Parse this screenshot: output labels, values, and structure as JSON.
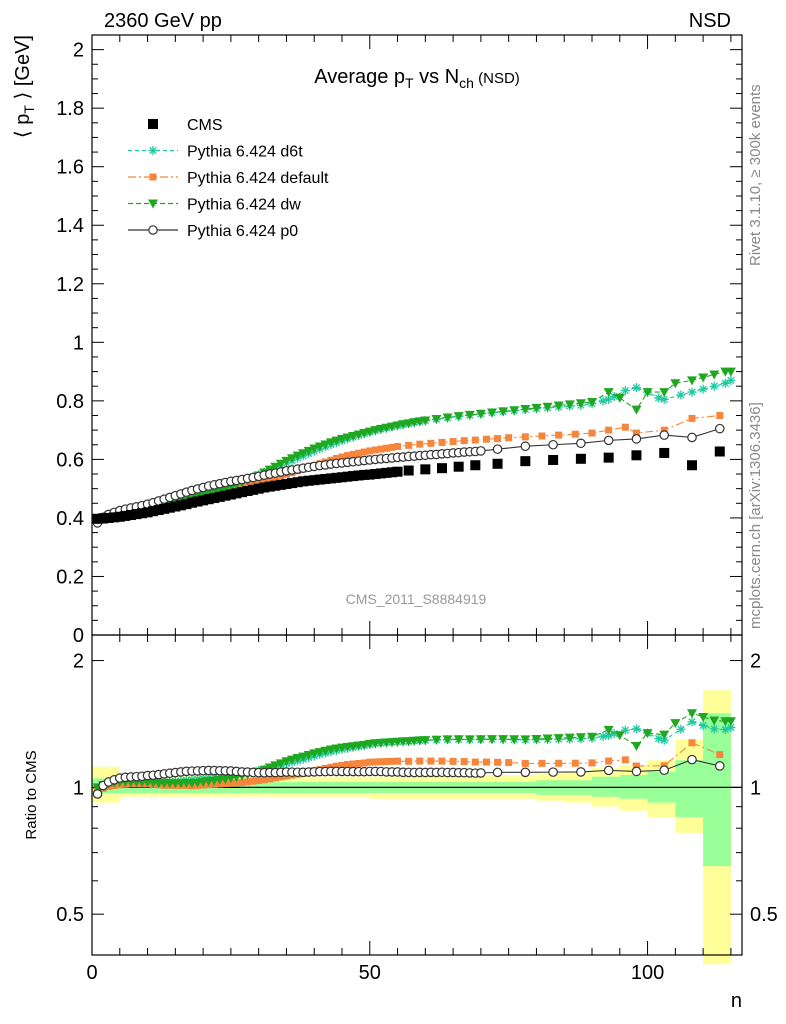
{
  "header": {
    "left": "2360 GeV pp",
    "right": "NSD"
  },
  "side_labels": {
    "rivet": "Rivet 3.1.10, ≥ 300k events",
    "mcplots": "mcplots.cern.ch [arXiv:1306.3436]"
  },
  "analysis_id": "CMS_2011_S8884919",
  "plot_title": {
    "main": "Average p",
    "sub1": "T",
    "mid": " vs N",
    "sub2": "ch",
    "tail": " (NSD)"
  },
  "colors": {
    "cms": "#000000",
    "d6t": "#1fc9a0",
    "default": "#f5863c",
    "dw": "#1fa81f",
    "p0": "#333333",
    "band_inner": "#99ff99",
    "band_outer": "#ffff99"
  },
  "chart_data": {
    "type": "line",
    "xlabel": "n",
    "ylabel": "⟨ p",
    "ylabel_sub": "T",
    "ylabel_tail": " ⟩ [GeV]",
    "xlim": [
      0,
      117
    ],
    "ylim": [
      0,
      2.05
    ],
    "x_ticks": [
      "0",
      "50",
      "100"
    ],
    "y_ticks": [
      "0",
      "0.2",
      "0.4",
      "0.6",
      "0.8",
      "1",
      "1.2",
      "1.4",
      "1.6",
      "1.8",
      "2"
    ],
    "legend_position": "top-left",
    "legend": [
      "CMS",
      "Pythia 6.424 d6t",
      "Pythia 6.424 default",
      "Pythia 6.424 dw",
      "Pythia 6.424 p0"
    ],
    "x": [
      1,
      2,
      3,
      4,
      5,
      6,
      7,
      8,
      9,
      10,
      11,
      12,
      13,
      14,
      15,
      16,
      17,
      18,
      19,
      20,
      21,
      22,
      23,
      24,
      25,
      26,
      27,
      28,
      29,
      30,
      31,
      32,
      33,
      34,
      35,
      36,
      37,
      38,
      39,
      40,
      41,
      42,
      43,
      44,
      45,
      46,
      47,
      48,
      49,
      50,
      51,
      52,
      53,
      54,
      55,
      56,
      57,
      58,
      59,
      60,
      61,
      62,
      63,
      64,
      65,
      66,
      67,
      68,
      69,
      70,
      71,
      72,
      73,
      74,
      75,
      76,
      77,
      78,
      79,
      80,
      81,
      82,
      83,
      84,
      85,
      86,
      87,
      88,
      89,
      90,
      91,
      92,
      93,
      94,
      95,
      96,
      97,
      98,
      99,
      100,
      101,
      102,
      103,
      104,
      105,
      106,
      107,
      108,
      109,
      110,
      111,
      112,
      113,
      114,
      115
    ],
    "series": [
      {
        "name": "CMS",
        "x": [
          1,
          2,
          3,
          4,
          5,
          6,
          7,
          8,
          9,
          10,
          11,
          12,
          13,
          14,
          15,
          16,
          17,
          18,
          19,
          20,
          21,
          22,
          23,
          24,
          25,
          26,
          27,
          28,
          29,
          30,
          31,
          32,
          33,
          34,
          35,
          36,
          37,
          38,
          39,
          40,
          41,
          42,
          43,
          44,
          45,
          46,
          47,
          48,
          49,
          50,
          51,
          52,
          53,
          54,
          55,
          57,
          60,
          63,
          66,
          69,
          73,
          78,
          83,
          88,
          93,
          98,
          103,
          108,
          113
        ],
        "y": [
          0.397,
          0.398,
          0.4,
          0.402,
          0.404,
          0.407,
          0.41,
          0.413,
          0.416,
          0.419,
          0.423,
          0.427,
          0.431,
          0.435,
          0.439,
          0.443,
          0.447,
          0.452,
          0.456,
          0.46,
          0.464,
          0.468,
          0.472,
          0.476,
          0.48,
          0.484,
          0.488,
          0.492,
          0.496,
          0.5,
          0.504,
          0.507,
          0.51,
          0.513,
          0.516,
          0.519,
          0.522,
          0.525,
          0.527,
          0.529,
          0.531,
          0.533,
          0.535,
          0.537,
          0.539,
          0.541,
          0.543,
          0.545,
          0.547,
          0.548,
          0.55,
          0.552,
          0.554,
          0.556,
          0.558,
          0.562,
          0.566,
          0.57,
          0.575,
          0.58,
          0.585,
          0.594,
          0.598,
          0.602,
          0.606,
          0.614,
          0.622,
          0.58,
          0.627
        ]
      },
      {
        "name": "Pythia 6.424 d6t",
        "x": [
          1,
          2,
          3,
          4,
          5,
          6,
          7,
          8,
          9,
          10,
          11,
          12,
          13,
          14,
          15,
          16,
          17,
          18,
          19,
          20,
          21,
          22,
          23,
          24,
          25,
          26,
          27,
          28,
          29,
          30,
          31,
          32,
          33,
          34,
          35,
          36,
          37,
          38,
          39,
          40,
          41,
          42,
          43,
          44,
          45,
          46,
          47,
          48,
          49,
          50,
          51,
          52,
          53,
          54,
          55,
          56,
          57,
          58,
          59,
          60,
          62,
          64,
          66,
          68,
          70,
          72,
          74,
          76,
          78,
          80,
          82,
          84,
          86,
          88,
          90,
          92,
          93,
          94,
          96,
          98,
          100,
          102,
          103,
          106,
          108,
          110,
          112,
          114,
          115
        ],
        "y": [
          0.395,
          0.402,
          0.408,
          0.412,
          0.416,
          0.419,
          0.422,
          0.425,
          0.429,
          0.432,
          0.436,
          0.44,
          0.444,
          0.449,
          0.454,
          0.459,
          0.465,
          0.471,
          0.477,
          0.483,
          0.489,
          0.495,
          0.501,
          0.507,
          0.513,
          0.52,
          0.527,
          0.534,
          0.541,
          0.548,
          0.556,
          0.564,
          0.572,
          0.58,
          0.588,
          0.596,
          0.604,
          0.612,
          0.62,
          0.628,
          0.636,
          0.643,
          0.65,
          0.657,
          0.664,
          0.67,
          0.676,
          0.682,
          0.688,
          0.693,
          0.698,
          0.703,
          0.707,
          0.711,
          0.715,
          0.719,
          0.722,
          0.726,
          0.729,
          0.732,
          0.737,
          0.742,
          0.747,
          0.751,
          0.755,
          0.759,
          0.763,
          0.766,
          0.77,
          0.773,
          0.776,
          0.779,
          0.782,
          0.785,
          0.79,
          0.8,
          0.805,
          0.815,
          0.835,
          0.845,
          0.83,
          0.81,
          0.805,
          0.82,
          0.83,
          0.84,
          0.85,
          0.86,
          0.87
        ]
      },
      {
        "name": "Pythia 6.424 default",
        "x": [
          1,
          2,
          3,
          4,
          5,
          6,
          7,
          8,
          9,
          10,
          11,
          12,
          13,
          14,
          15,
          16,
          17,
          18,
          19,
          20,
          21,
          22,
          23,
          24,
          25,
          26,
          27,
          28,
          29,
          30,
          31,
          32,
          33,
          34,
          35,
          36,
          37,
          38,
          39,
          40,
          41,
          42,
          43,
          44,
          45,
          46,
          47,
          48,
          49,
          50,
          51,
          52,
          53,
          54,
          55,
          57,
          59,
          61,
          63,
          65,
          67,
          69,
          71,
          73,
          75,
          78,
          81,
          84,
          87,
          90,
          93,
          96,
          98,
          103,
          108,
          113
        ],
        "y": [
          0.388,
          0.396,
          0.402,
          0.406,
          0.41,
          0.414,
          0.418,
          0.421,
          0.424,
          0.427,
          0.43,
          0.433,
          0.436,
          0.44,
          0.444,
          0.448,
          0.452,
          0.456,
          0.461,
          0.466,
          0.471,
          0.476,
          0.481,
          0.486,
          0.491,
          0.496,
          0.501,
          0.507,
          0.513,
          0.519,
          0.525,
          0.531,
          0.537,
          0.543,
          0.549,
          0.555,
          0.561,
          0.567,
          0.573,
          0.579,
          0.585,
          0.591,
          0.597,
          0.603,
          0.608,
          0.613,
          0.617,
          0.621,
          0.625,
          0.629,
          0.632,
          0.635,
          0.638,
          0.641,
          0.644,
          0.648,
          0.652,
          0.655,
          0.658,
          0.661,
          0.664,
          0.666,
          0.669,
          0.671,
          0.674,
          0.677,
          0.68,
          0.683,
          0.686,
          0.69,
          0.7,
          0.71,
          0.69,
          0.7,
          0.74,
          0.75
        ]
      },
      {
        "name": "Pythia 6.424 dw",
        "x": [
          1,
          2,
          3,
          4,
          5,
          6,
          7,
          8,
          9,
          10,
          11,
          12,
          13,
          14,
          15,
          16,
          17,
          18,
          19,
          20,
          21,
          22,
          23,
          24,
          25,
          26,
          27,
          28,
          29,
          30,
          31,
          32,
          33,
          34,
          35,
          36,
          37,
          38,
          39,
          40,
          41,
          42,
          43,
          44,
          45,
          46,
          47,
          48,
          49,
          50,
          51,
          52,
          53,
          54,
          55,
          56,
          57,
          58,
          59,
          60,
          62,
          64,
          66,
          68,
          70,
          72,
          74,
          76,
          78,
          80,
          82,
          84,
          86,
          88,
          90,
          93,
          95,
          98,
          100,
          103,
          105,
          108,
          110,
          112,
          114,
          115
        ],
        "y": [
          0.397,
          0.403,
          0.408,
          0.412,
          0.416,
          0.419,
          0.422,
          0.425,
          0.428,
          0.431,
          0.434,
          0.437,
          0.441,
          0.445,
          0.449,
          0.453,
          0.458,
          0.463,
          0.468,
          0.474,
          0.48,
          0.486,
          0.492,
          0.498,
          0.505,
          0.512,
          0.52,
          0.528,
          0.536,
          0.545,
          0.555,
          0.565,
          0.575,
          0.585,
          0.595,
          0.604,
          0.613,
          0.621,
          0.629,
          0.637,
          0.644,
          0.651,
          0.658,
          0.664,
          0.67,
          0.675,
          0.68,
          0.685,
          0.69,
          0.695,
          0.7,
          0.704,
          0.708,
          0.712,
          0.716,
          0.72,
          0.723,
          0.727,
          0.73,
          0.733,
          0.738,
          0.743,
          0.748,
          0.752,
          0.756,
          0.76,
          0.764,
          0.768,
          0.772,
          0.776,
          0.78,
          0.784,
          0.788,
          0.792,
          0.796,
          0.83,
          0.81,
          0.77,
          0.83,
          0.83,
          0.86,
          0.87,
          0.88,
          0.89,
          0.9,
          0.9
        ]
      },
      {
        "name": "Pythia 6.424 p0",
        "x": [
          1,
          2,
          3,
          4,
          5,
          6,
          7,
          8,
          9,
          10,
          11,
          12,
          13,
          14,
          15,
          16,
          17,
          18,
          19,
          20,
          21,
          22,
          23,
          24,
          25,
          26,
          27,
          28,
          29,
          30,
          31,
          32,
          33,
          34,
          35,
          36,
          37,
          38,
          39,
          40,
          41,
          42,
          43,
          44,
          45,
          46,
          47,
          48,
          49,
          50,
          51,
          52,
          53,
          54,
          55,
          56,
          57,
          58,
          59,
          60,
          61,
          62,
          63,
          64,
          65,
          66,
          67,
          68,
          69,
          70,
          73,
          78,
          83,
          88,
          93,
          98,
          103,
          108,
          113
        ],
        "y": [
          0.383,
          0.402,
          0.412,
          0.419,
          0.425,
          0.43,
          0.434,
          0.438,
          0.442,
          0.447,
          0.452,
          0.458,
          0.464,
          0.47,
          0.476,
          0.482,
          0.488,
          0.494,
          0.499,
          0.504,
          0.509,
          0.513,
          0.517,
          0.521,
          0.525,
          0.528,
          0.531,
          0.535,
          0.538,
          0.542,
          0.546,
          0.55,
          0.553,
          0.557,
          0.561,
          0.564,
          0.567,
          0.57,
          0.573,
          0.576,
          0.579,
          0.581,
          0.584,
          0.586,
          0.588,
          0.59,
          0.592,
          0.594,
          0.596,
          0.598,
          0.6,
          0.602,
          0.603,
          0.605,
          0.607,
          0.608,
          0.61,
          0.611,
          0.613,
          0.614,
          0.616,
          0.617,
          0.619,
          0.62,
          0.622,
          0.623,
          0.625,
          0.626,
          0.627,
          0.629,
          0.635,
          0.645,
          0.65,
          0.655,
          0.665,
          0.67,
          0.683,
          0.675,
          0.705
        ]
      }
    ],
    "ratio_panel": {
      "ylabel": "Ratio to CMS",
      "yscale": "log",
      "ylim": [
        0.4,
        2.3
      ],
      "y_ticks": [
        "0.5",
        "1",
        "2"
      ],
      "band_x": [
        0,
        5,
        10,
        20,
        30,
        40,
        50,
        60,
        70,
        80,
        85,
        90,
        95,
        100,
        105,
        110,
        115
      ],
      "band_inner": [
        [
          0.97,
          1.05
        ],
        [
          0.97,
          1.03
        ],
        [
          0.97,
          1.03
        ],
        [
          0.97,
          1.03
        ],
        [
          0.97,
          1.03
        ],
        [
          0.97,
          1.03
        ],
        [
          0.97,
          1.03
        ],
        [
          0.97,
          1.03
        ],
        [
          0.97,
          1.03
        ],
        [
          0.96,
          1.04
        ],
        [
          0.96,
          1.04
        ],
        [
          0.95,
          1.06
        ],
        [
          0.94,
          1.07
        ],
        [
          0.92,
          1.09
        ],
        [
          0.85,
          1.16
        ],
        [
          0.65,
          1.5
        ],
        [
          0.49,
          1.6
        ]
      ],
      "band_outer": [
        [
          0.92,
          1.12
        ],
        [
          0.95,
          1.08
        ],
        [
          0.95,
          1.07
        ],
        [
          0.95,
          1.06
        ],
        [
          0.95,
          1.06
        ],
        [
          0.95,
          1.06
        ],
        [
          0.94,
          1.06
        ],
        [
          0.94,
          1.07
        ],
        [
          0.94,
          1.07
        ],
        [
          0.93,
          1.08
        ],
        [
          0.92,
          1.09
        ],
        [
          0.9,
          1.11
        ],
        [
          0.88,
          1.13
        ],
        [
          0.85,
          1.16
        ],
        [
          0.78,
          1.3
        ],
        [
          0.38,
          1.7
        ],
        [
          0.38,
          2.0
        ]
      ]
    }
  }
}
